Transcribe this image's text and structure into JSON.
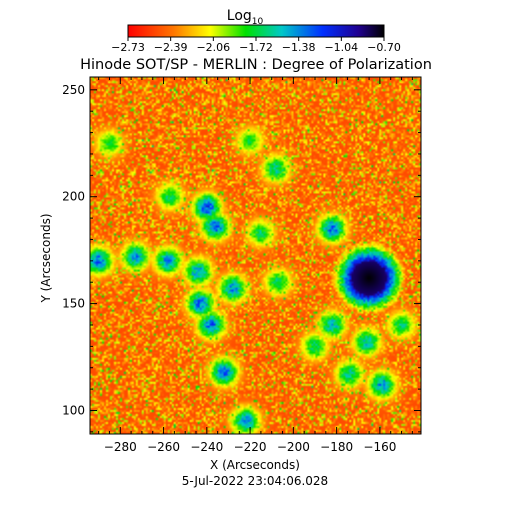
{
  "chart_data": {
    "type": "heatmap",
    "title": "Hinode SOT/SP - MERLIN : Degree of Polarization",
    "xlabel": "X (Arcseconds)",
    "ylabel": "Y (Arcseconds)",
    "timestamp": "5-Jul-2022 23:04:06.028",
    "xlim": [
      -294,
      -141
    ],
    "ylim": [
      89,
      256
    ],
    "xticks": [
      -280,
      -260,
      -240,
      -220,
      -200,
      -180,
      -160
    ],
    "yticks": [
      100,
      150,
      200,
      250
    ],
    "colorbar": {
      "title": "Log",
      "title_subscript": "10",
      "range": [
        -2.73,
        -0.7
      ],
      "ticks": [
        "-2.73",
        "-2.39",
        "-2.06",
        "-1.72",
        "-1.38",
        "-1.04",
        "-0.70"
      ],
      "colormap": "rainbow"
    },
    "features": [
      {
        "kind": "sunspot",
        "x": -165,
        "y": 162,
        "radius": 8,
        "value": -0.7
      },
      {
        "kind": "plage",
        "x": -290,
        "y": 170,
        "value": -1.2
      },
      {
        "kind": "plage",
        "x": -273,
        "y": 172,
        "value": -1.3
      },
      {
        "kind": "plage",
        "x": -258,
        "y": 170,
        "value": -1.3
      },
      {
        "kind": "plage",
        "x": -240,
        "y": 195,
        "value": -1.1
      },
      {
        "kind": "plage",
        "x": -236,
        "y": 186,
        "value": -1.2
      },
      {
        "kind": "plage",
        "x": -244,
        "y": 165,
        "value": -1.3
      },
      {
        "kind": "plage",
        "x": -228,
        "y": 157,
        "value": -1.3
      },
      {
        "kind": "plage",
        "x": -243,
        "y": 150,
        "value": -1.2
      },
      {
        "kind": "plage",
        "x": -238,
        "y": 140,
        "value": -1.2
      },
      {
        "kind": "plage",
        "x": -232,
        "y": 118,
        "value": -1.2
      },
      {
        "kind": "plage",
        "x": -222,
        "y": 95,
        "value": -1.3
      },
      {
        "kind": "plage",
        "x": -215,
        "y": 183,
        "value": -1.6
      },
      {
        "kind": "plage",
        "x": -207,
        "y": 160,
        "value": -1.6
      },
      {
        "kind": "plage",
        "x": -208,
        "y": 213,
        "value": -1.5
      },
      {
        "kind": "plage",
        "x": -182,
        "y": 185,
        "value": -1.2
      },
      {
        "kind": "plage",
        "x": -182,
        "y": 140,
        "value": -1.4
      },
      {
        "kind": "plage",
        "x": -166,
        "y": 132,
        "value": -1.4
      },
      {
        "kind": "plage",
        "x": -174,
        "y": 117,
        "value": -1.5
      },
      {
        "kind": "plage",
        "x": -159,
        "y": 112,
        "value": -1.3
      },
      {
        "kind": "plage",
        "x": -150,
        "y": 140,
        "value": -1.6
      },
      {
        "kind": "plage",
        "x": -257,
        "y": 200,
        "value": -1.6
      },
      {
        "kind": "plage",
        "x": -285,
        "y": 225,
        "value": -1.7
      },
      {
        "kind": "plage",
        "x": -220,
        "y": 226,
        "value": -1.7
      },
      {
        "kind": "plage",
        "x": -190,
        "y": 130,
        "value": -1.6
      }
    ]
  }
}
